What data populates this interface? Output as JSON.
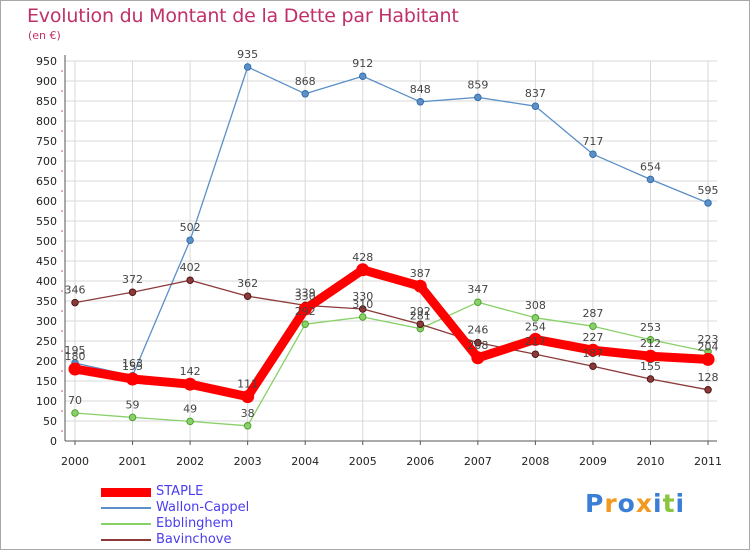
{
  "chart_data": {
    "type": "line",
    "title": "Evolution du Montant de la Dette par Habitant",
    "subtitle": "(en €)",
    "categories": [
      "2000",
      "2001",
      "2002",
      "2003",
      "2004",
      "2005",
      "2006",
      "2007",
      "2008",
      "2009",
      "2010",
      "2011"
    ],
    "ylim": [
      0,
      950
    ],
    "yticks": [
      0,
      50,
      100,
      150,
      200,
      250,
      300,
      350,
      400,
      450,
      500,
      550,
      600,
      650,
      700,
      750,
      800,
      850,
      900,
      950
    ],
    "grid": true,
    "legend_position": "bottom-left",
    "series": [
      {
        "name": "STAPLE",
        "color": "#ff0000",
        "values": [
          180,
          155,
          142,
          111,
          330,
          428,
          387,
          208,
          254,
          227,
          212,
          204
        ]
      },
      {
        "name": "Wallon-Cappel",
        "color": "#5b8fc8",
        "values": [
          195,
          163,
          502,
          935,
          868,
          912,
          848,
          859,
          837,
          717,
          654,
          595
        ]
      },
      {
        "name": "Ebblinghem",
        "color": "#88d068",
        "values": [
          70,
          59,
          49,
          38,
          292,
          310,
          281,
          347,
          308,
          287,
          253,
          223
        ]
      },
      {
        "name": "Bavinchove",
        "color": "#8b3a3a",
        "values": [
          346,
          372,
          402,
          362,
          339,
          330,
          292,
          246,
          217,
          187,
          155,
          128
        ]
      }
    ],
    "data_labels": [
      {
        "year": "2000",
        "text": "195",
        "value": 195
      },
      {
        "year": "2000",
        "text": "180",
        "value": 180
      },
      {
        "year": "2001",
        "text": "163",
        "value": 163
      },
      {
        "year": "2001",
        "text": "155",
        "value": 155
      },
      {
        "year": "2002",
        "text": "142",
        "value": 142
      },
      {
        "year": "2003",
        "text": "111",
        "value": 111
      },
      {
        "year": "2004",
        "text": "339",
        "value": 339
      },
      {
        "year": "2004",
        "text": "330",
        "value": 330
      },
      {
        "year": "2004",
        "text": "292",
        "value": 292
      },
      {
        "year": "2005",
        "text": "330",
        "value": 330
      },
      {
        "year": "2005",
        "text": "310",
        "value": 310
      },
      {
        "year": "2006",
        "text": "292",
        "value": 292
      },
      {
        "year": "2006",
        "text": "281",
        "value": 281
      },
      {
        "year": "2007",
        "text": "347",
        "value": 347
      },
      {
        "year": "2007",
        "text": "246",
        "value": 246
      },
      {
        "year": "2007",
        "text": "208",
        "value": 208
      },
      {
        "year": "2008",
        "text": "308",
        "value": 308
      },
      {
        "year": "2008",
        "text": "254",
        "value": 254
      },
      {
        "year": "2008",
        "text": "217",
        "value": 217
      },
      {
        "year": "2009",
        "text": "287",
        "value": 287
      },
      {
        "year": "2009",
        "text": "227",
        "value": 227
      },
      {
        "year": "2009",
        "text": "187",
        "value": 187
      },
      {
        "year": "2010",
        "text": "253",
        "value": 253
      },
      {
        "year": "2010",
        "text": "212",
        "value": 212
      },
      {
        "year": "2010",
        "text": "155",
        "value": 155
      },
      {
        "year": "2011",
        "text": "223",
        "value": 223
      },
      {
        "year": "2011",
        "text": "204",
        "value": 204
      },
      {
        "year": "2011",
        "text": "128",
        "value": 128
      },
      {
        "year": "2000",
        "text": "70",
        "value": 70
      },
      {
        "year": "2001",
        "text": "59",
        "value": 59
      },
      {
        "year": "2002",
        "text": "49",
        "value": 49
      },
      {
        "year": "2003",
        "text": "38",
        "value": 38
      },
      {
        "year": "2000",
        "text": "346",
        "value": 346
      },
      {
        "year": "2001",
        "text": "372",
        "value": 372
      },
      {
        "year": "2002",
        "text": "402",
        "value": 402
      },
      {
        "year": "2003",
        "text": "362",
        "value": 362
      },
      {
        "year": "2005",
        "text": "428",
        "value": 428
      },
      {
        "year": "2006",
        "text": "387",
        "value": 387
      },
      {
        "year": "2002",
        "text": "502",
        "value": 502
      },
      {
        "year": "2003",
        "text": "935",
        "value": 935
      },
      {
        "year": "2004",
        "text": "868",
        "value": 868
      },
      {
        "year": "2005",
        "text": "912",
        "value": 912
      },
      {
        "year": "2006",
        "text": "848",
        "value": 848
      },
      {
        "year": "2007",
        "text": "859",
        "value": 859
      },
      {
        "year": "2008",
        "text": "837",
        "value": 837
      },
      {
        "year": "2009",
        "text": "717",
        "value": 717
      },
      {
        "year": "2010",
        "text": "654",
        "value": 654
      },
      {
        "year": "2011",
        "text": "595",
        "value": 595
      }
    ]
  },
  "logo": {
    "text": "Proxiti",
    "letters": [
      {
        "ch": "P",
        "color": "#3a7fd5"
      },
      {
        "ch": "r",
        "color": "#f29a1f"
      },
      {
        "ch": "o",
        "color": "#3a7fd5"
      },
      {
        "ch": "x",
        "color": "#f29a1f"
      },
      {
        "ch": "i",
        "color": "#3a7fd5"
      },
      {
        "ch": "t",
        "color": "#8cc63f"
      },
      {
        "ch": "i",
        "color": "#3a7fd5"
      }
    ]
  }
}
